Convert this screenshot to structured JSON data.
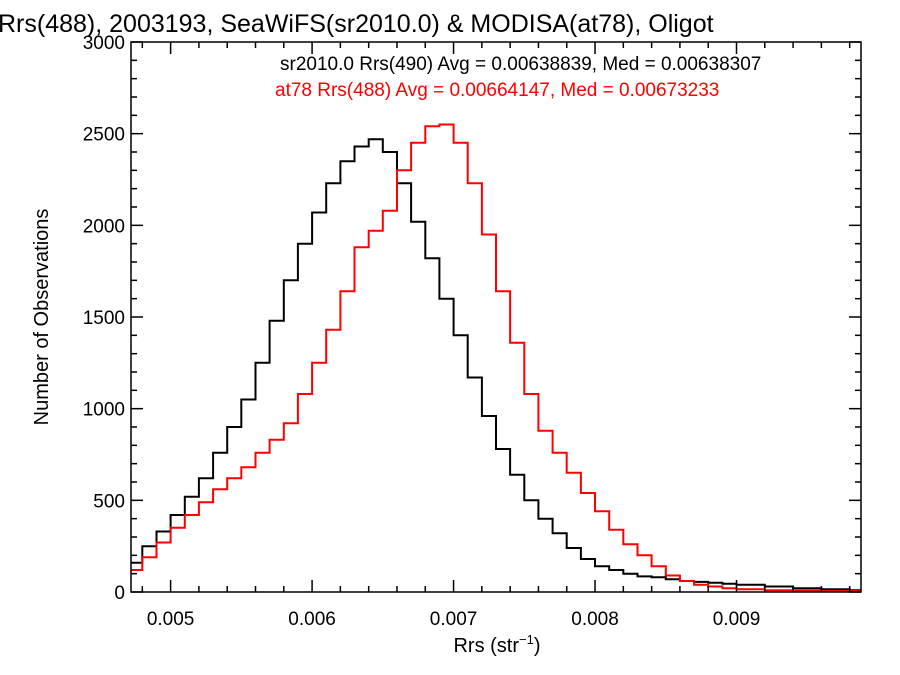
{
  "chart_data": {
    "type": "histogram",
    "title": "Rrs(488), 2003193, SeaWiFS(sr2010.0) & MODISA(at78), Oligot",
    "xlabel_main": "Rrs (str",
    "xlabel_sup": "−1",
    "xlabel_close": ")",
    "ylabel": "Number of Observations",
    "xlim": [
      0.00472,
      0.00988
    ],
    "ylim": [
      0,
      3000
    ],
    "xticks": [
      0.005,
      0.006,
      0.007,
      0.008,
      0.009
    ],
    "xtick_labels": [
      "0.005",
      "0.006",
      "0.007",
      "0.008",
      "0.009"
    ],
    "yticks": [
      0,
      500,
      1000,
      1500,
      2000,
      2500,
      3000
    ],
    "ytick_labels": [
      "0",
      "500",
      "1000",
      "1500",
      "2000",
      "2500",
      "3000"
    ],
    "grid": false,
    "legend_placement": "top-right",
    "series": [
      {
        "name": "sr2010.0 Rrs(490) Avg = 0.00638839, Med = 0.00638307",
        "color": "#000000",
        "x": [
          0.00472,
          0.0048,
          0.0049,
          0.005,
          0.0051,
          0.0052,
          0.0053,
          0.0054,
          0.0055,
          0.0056,
          0.0057,
          0.0058,
          0.0059,
          0.006,
          0.0061,
          0.0062,
          0.0063,
          0.0064,
          0.0065,
          0.0066,
          0.0067,
          0.0068,
          0.0069,
          0.007,
          0.0071,
          0.0072,
          0.0073,
          0.0074,
          0.0075,
          0.0076,
          0.0077,
          0.0078,
          0.0079,
          0.008,
          0.0081,
          0.0082,
          0.0083,
          0.0084,
          0.0085,
          0.0086,
          0.0087,
          0.0088,
          0.0089,
          0.009,
          0.0092,
          0.0094,
          0.0096,
          0.0098,
          0.00988
        ],
        "y": [
          160,
          250,
          330,
          420,
          520,
          620,
          760,
          900,
          1050,
          1250,
          1480,
          1700,
          1900,
          2070,
          2230,
          2350,
          2430,
          2470,
          2400,
          2230,
          2020,
          1820,
          1600,
          1400,
          1170,
          960,
          780,
          640,
          500,
          400,
          320,
          240,
          180,
          140,
          120,
          100,
          85,
          80,
          70,
          60,
          55,
          50,
          45,
          40,
          30,
          20,
          15,
          10,
          8
        ]
      },
      {
        "name": "at78 Rrs(488) Avg = 0.00664147, Med = 0.00673233",
        "color": "#ff0000",
        "x": [
          0.00472,
          0.0048,
          0.0049,
          0.005,
          0.0051,
          0.0052,
          0.0053,
          0.0054,
          0.0055,
          0.0056,
          0.0057,
          0.0058,
          0.0059,
          0.006,
          0.0061,
          0.0062,
          0.0063,
          0.0064,
          0.0065,
          0.0066,
          0.0067,
          0.0068,
          0.0069,
          0.007,
          0.0071,
          0.0072,
          0.0073,
          0.0074,
          0.0075,
          0.0076,
          0.0077,
          0.0078,
          0.0079,
          0.008,
          0.0081,
          0.0082,
          0.0083,
          0.0084,
          0.0085,
          0.0086,
          0.0087,
          0.0088,
          0.0089,
          0.009,
          0.0092,
          0.0094,
          0.0096,
          0.0098,
          0.00988
        ],
        "y": [
          120,
          190,
          270,
          350,
          420,
          490,
          560,
          620,
          680,
          760,
          830,
          920,
          1080,
          1250,
          1430,
          1640,
          1880,
          1970,
          2080,
          2300,
          2450,
          2540,
          2550,
          2450,
          2230,
          1950,
          1640,
          1360,
          1080,
          880,
          760,
          650,
          540,
          440,
          340,
          260,
          200,
          140,
          90,
          60,
          40,
          30,
          20,
          15,
          10,
          8,
          6,
          5,
          5
        ]
      }
    ]
  }
}
